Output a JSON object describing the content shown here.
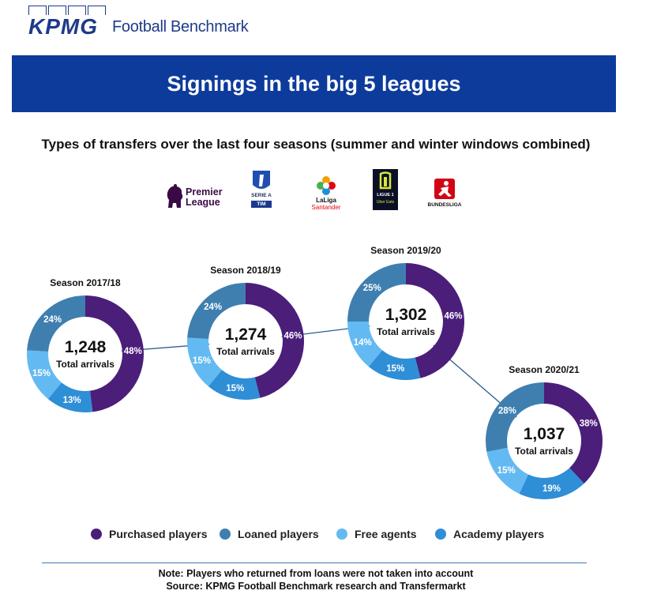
{
  "brand": {
    "logo": "KPMG",
    "name": "Football Benchmark"
  },
  "banner": {
    "title": "Signings in the big 5 leagues"
  },
  "subtitle": "Types of transfers over the last four seasons (summer and winter windows combined)",
  "leagues": {
    "premier": {
      "line1": "Premier",
      "line2": "League"
    },
    "seriea": {
      "line1": "SERIE A",
      "line2": "TIM"
    },
    "laliga": {
      "line1": "LaLiga",
      "line2": "Santander"
    },
    "ligue1": {
      "line1": "LIGUE 1",
      "line2": "Uber Eats"
    },
    "bundesliga": {
      "line1": "BUNDESLIGA"
    }
  },
  "colors": {
    "purchased": "#4b1e7a",
    "loaned": "#3f7fb0",
    "free": "#63baf2",
    "academy": "#2e8ed6"
  },
  "chart_data": {
    "type": "donut",
    "series_names": [
      "Purchased players",
      "Loaned players",
      "Free agents",
      "Academy players"
    ],
    "center_caption": "Total arrivals",
    "seasons": [
      {
        "label": "Season 2017/18",
        "total": "1,248",
        "shares": {
          "purchased": 48,
          "academy": 13,
          "free": 15,
          "loaned": 24
        }
      },
      {
        "label": "Season 2018/19",
        "total": "1,274",
        "shares": {
          "purchased": 46,
          "academy": 15,
          "free": 15,
          "loaned": 24
        }
      },
      {
        "label": "Season 2019/20",
        "total": "1,302",
        "shares": {
          "purchased": 46,
          "academy": 15,
          "free": 14,
          "loaned": 25
        }
      },
      {
        "label": "Season 2020/21",
        "total": "1,037",
        "shares": {
          "purchased": 38,
          "academy": 19,
          "free": 15,
          "loaned": 28
        }
      }
    ]
  },
  "legend": [
    {
      "label": "Purchased players",
      "color_key": "purchased"
    },
    {
      "label": "Loaned players",
      "color_key": "loaned"
    },
    {
      "label": "Free agents",
      "color_key": "free"
    },
    {
      "label": "Academy players",
      "color_key": "academy"
    }
  ],
  "notes": {
    "note": "Note: Players who returned from loans were not taken into account",
    "source": "Source: KPMG Football Benchmark research and Transfermarkt"
  }
}
